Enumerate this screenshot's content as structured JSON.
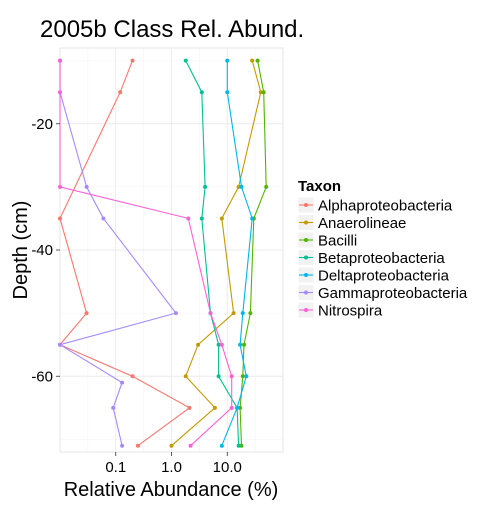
{
  "chart_data": {
    "type": "line",
    "title": "2005b Class Rel. Abund.",
    "xlabel": "Relative Abundance (%)",
    "ylabel": "Depth (cm)",
    "x_scale": "log10",
    "xlim": [
      0.01,
      100
    ],
    "ylim": [
      -72,
      -8
    ],
    "x_ticks": [
      {
        "value": 0.1,
        "label": "0.1"
      },
      {
        "value": 1,
        "label": "1.0"
      },
      {
        "value": 10,
        "label": "10.0"
      }
    ],
    "y_ticks": [
      {
        "value": -20,
        "label": "-20"
      },
      {
        "value": -40,
        "label": "-40"
      },
      {
        "value": -60,
        "label": "-60"
      }
    ],
    "grid": true,
    "legend": {
      "title": "Taxon",
      "position": "right"
    },
    "series": [
      {
        "name": "Alphaproteobacteria",
        "color": "#F8766D",
        "points": [
          [
            0.2,
            -10
          ],
          [
            0.12,
            -15
          ],
          [
            0.01,
            -35
          ],
          [
            0.03,
            -50
          ],
          [
            0.01,
            -55
          ],
          [
            0.2,
            -60
          ],
          [
            2.1,
            -65
          ],
          [
            0.25,
            -71
          ]
        ]
      },
      {
        "name": "Anaerolineae",
        "color": "#C49A00",
        "points": [
          [
            28,
            -10
          ],
          [
            40,
            -15
          ],
          [
            16,
            -30
          ],
          [
            8,
            -35
          ],
          [
            13,
            -50
          ],
          [
            3,
            -55
          ],
          [
            1.8,
            -60
          ],
          [
            6,
            -65
          ],
          [
            1,
            -71
          ]
        ]
      },
      {
        "name": "Bacilli",
        "color": "#53B400",
        "points": [
          [
            35,
            -10
          ],
          [
            45,
            -15
          ],
          [
            50,
            -30
          ],
          [
            30,
            -35
          ],
          [
            26,
            -50
          ],
          [
            20,
            -55
          ],
          [
            19,
            -60
          ],
          [
            17,
            -65
          ],
          [
            18,
            -71
          ]
        ]
      },
      {
        "name": "Betaproteobacteria",
        "color": "#00C094",
        "points": [
          [
            1.8,
            -10
          ],
          [
            3.5,
            -15
          ],
          [
            4,
            -30
          ],
          [
            3.5,
            -35
          ],
          [
            5,
            -50
          ],
          [
            7,
            -55
          ],
          [
            7,
            -60
          ],
          [
            15,
            -65
          ],
          [
            16,
            -71
          ]
        ]
      },
      {
        "name": "Deltaproteobacteria",
        "color": "#00B6EB",
        "points": [
          [
            10,
            -10
          ],
          [
            10,
            -15
          ],
          [
            18,
            -30
          ],
          [
            28,
            -35
          ],
          [
            19,
            -50
          ],
          [
            17,
            -55
          ],
          [
            22,
            -60
          ],
          [
            15,
            -65
          ],
          [
            8,
            -71
          ]
        ]
      },
      {
        "name": "Gammaproteobacteria",
        "color": "#A58AFF",
        "points": [
          [
            0.01,
            -10
          ],
          [
            0.01,
            -15
          ],
          [
            0.03,
            -30
          ],
          [
            0.06,
            -35
          ],
          [
            1.2,
            -50
          ],
          [
            0.01,
            -55
          ],
          [
            0.13,
            -61
          ],
          [
            0.09,
            -65
          ],
          [
            0.13,
            -71
          ]
        ]
      },
      {
        "name": "Nitrospira",
        "color": "#FB61D7",
        "points": [
          [
            0.01,
            -10
          ],
          [
            0.01,
            -15
          ],
          [
            0.01,
            -30
          ],
          [
            2,
            -35
          ],
          [
            5,
            -50
          ],
          [
            8,
            -55
          ],
          [
            12,
            -60
          ],
          [
            12,
            -65
          ],
          [
            2.2,
            -71
          ]
        ]
      }
    ]
  }
}
